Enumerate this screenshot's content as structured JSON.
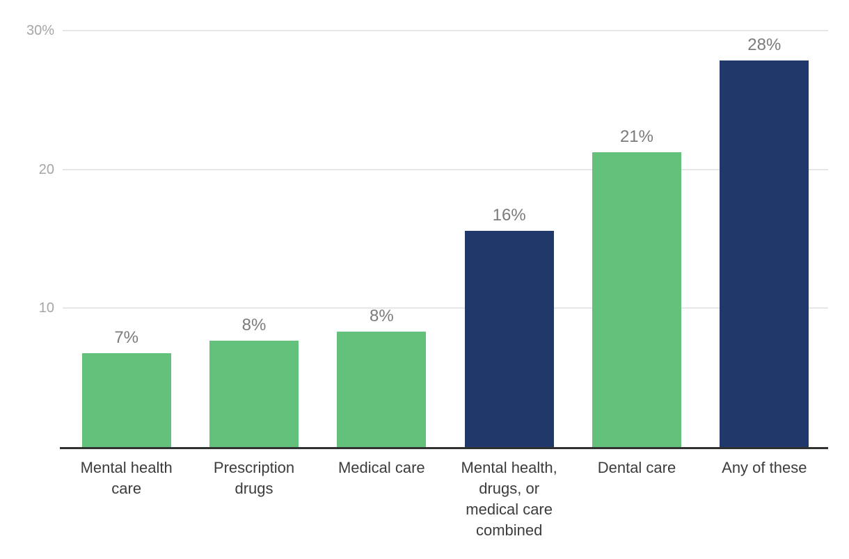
{
  "chart_data": {
    "type": "bar",
    "title": "",
    "xlabel": "",
    "ylabel": "",
    "legend": "none",
    "grid": true,
    "ylim": [
      0,
      30
    ],
    "categories": [
      "Mental health care",
      "Prescription drugs",
      "Medical care",
      "Mental health, drugs, or medical care combined",
      "Dental care",
      "Any of these"
    ],
    "categories_display": [
      "Mental health\ncare",
      "Prescription\ndrugs",
      "Medical care",
      "Mental health,\ndrugs, or\nmedical care\ncombined",
      "Dental care",
      "Any of these"
    ],
    "values": [
      7,
      8,
      8,
      16,
      21,
      28
    ],
    "value_labels": [
      "7%",
      "8%",
      "8%",
      "16%",
      "21%",
      "28%"
    ],
    "plot_values": [
      6.75,
      7.65,
      8.3,
      15.6,
      21.25,
      27.85
    ],
    "bar_color_keys": [
      "green",
      "green",
      "green",
      "navy",
      "green",
      "navy"
    ],
    "y_axis": {
      "max": 30,
      "ticks": [
        {
          "value": 30,
          "label": "30%"
        },
        {
          "value": 20,
          "label": "20"
        },
        {
          "value": 10,
          "label": "10"
        }
      ]
    }
  },
  "colors": {
    "green": "#63c17c",
    "navy": "#21386b",
    "grid": "#e7e7e7",
    "axis_line": "#313131",
    "tick_label": "#a5a5a5",
    "value_label": "#7b7b7b",
    "category_label": "#3c3c3c",
    "background": "#ffffff"
  }
}
